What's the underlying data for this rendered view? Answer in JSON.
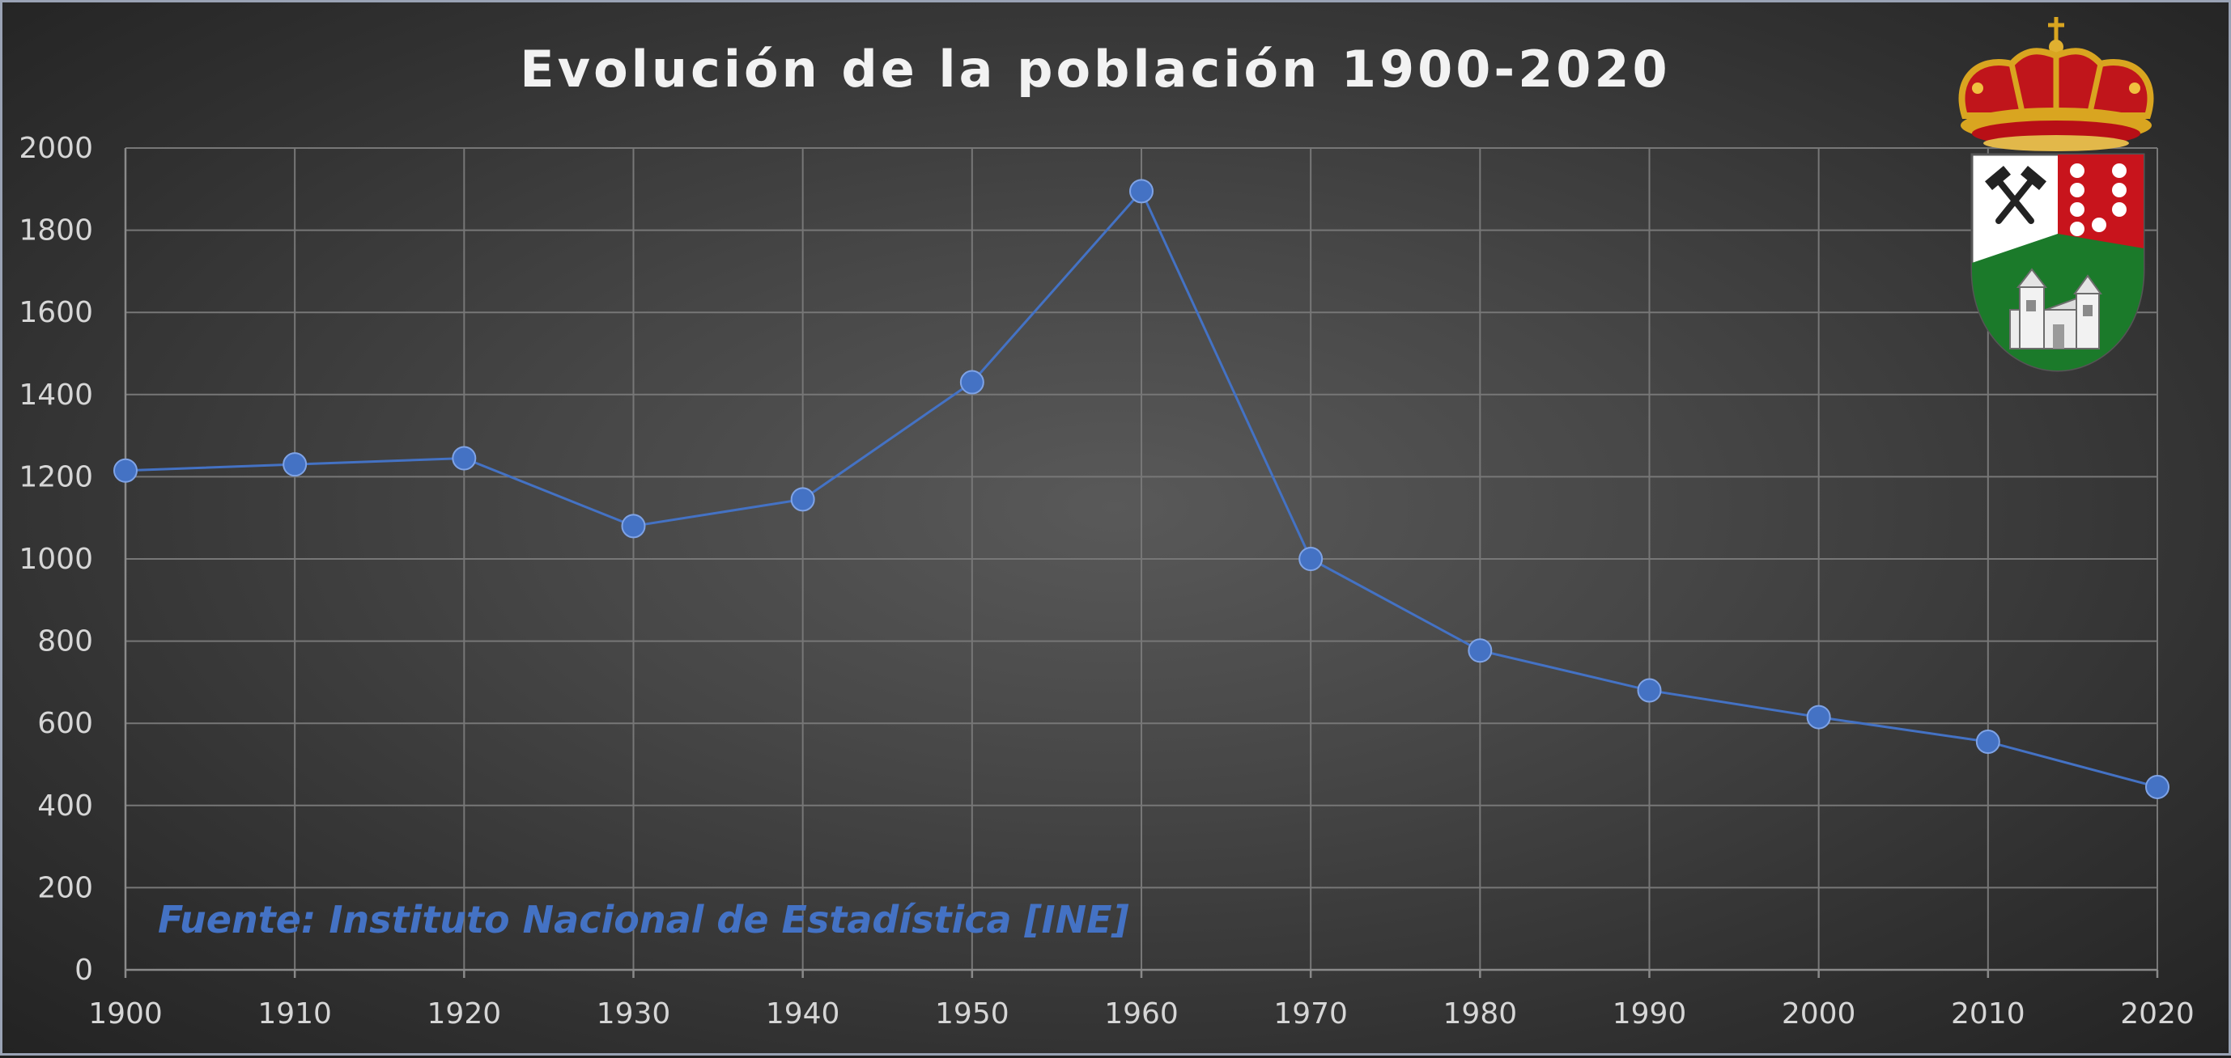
{
  "chart_data": {
    "type": "line",
    "title": "Evolución de la población 1900-2020",
    "xlabel": "",
    "ylabel": "",
    "ylim": [
      0,
      2000
    ],
    "y_ticks": [
      0,
      200,
      400,
      600,
      800,
      1000,
      1200,
      1400,
      1600,
      1800,
      2000
    ],
    "categories": [
      "1900",
      "1910",
      "1920",
      "1930",
      "1940",
      "1950",
      "1960",
      "1970",
      "1980",
      "1990",
      "2000",
      "2010",
      "2020"
    ],
    "series": [
      {
        "values": [
          1215,
          1230,
          1245,
          1080,
          1145,
          1430,
          1895,
          1000,
          777,
          680,
          615,
          555,
          445
        ],
        "color": "#4472c4"
      }
    ],
    "grid": true,
    "legend": "none",
    "annotation": "Fuente: Instituto Nacional de Estadística [INE]",
    "emblem": "coat-of-arms"
  }
}
